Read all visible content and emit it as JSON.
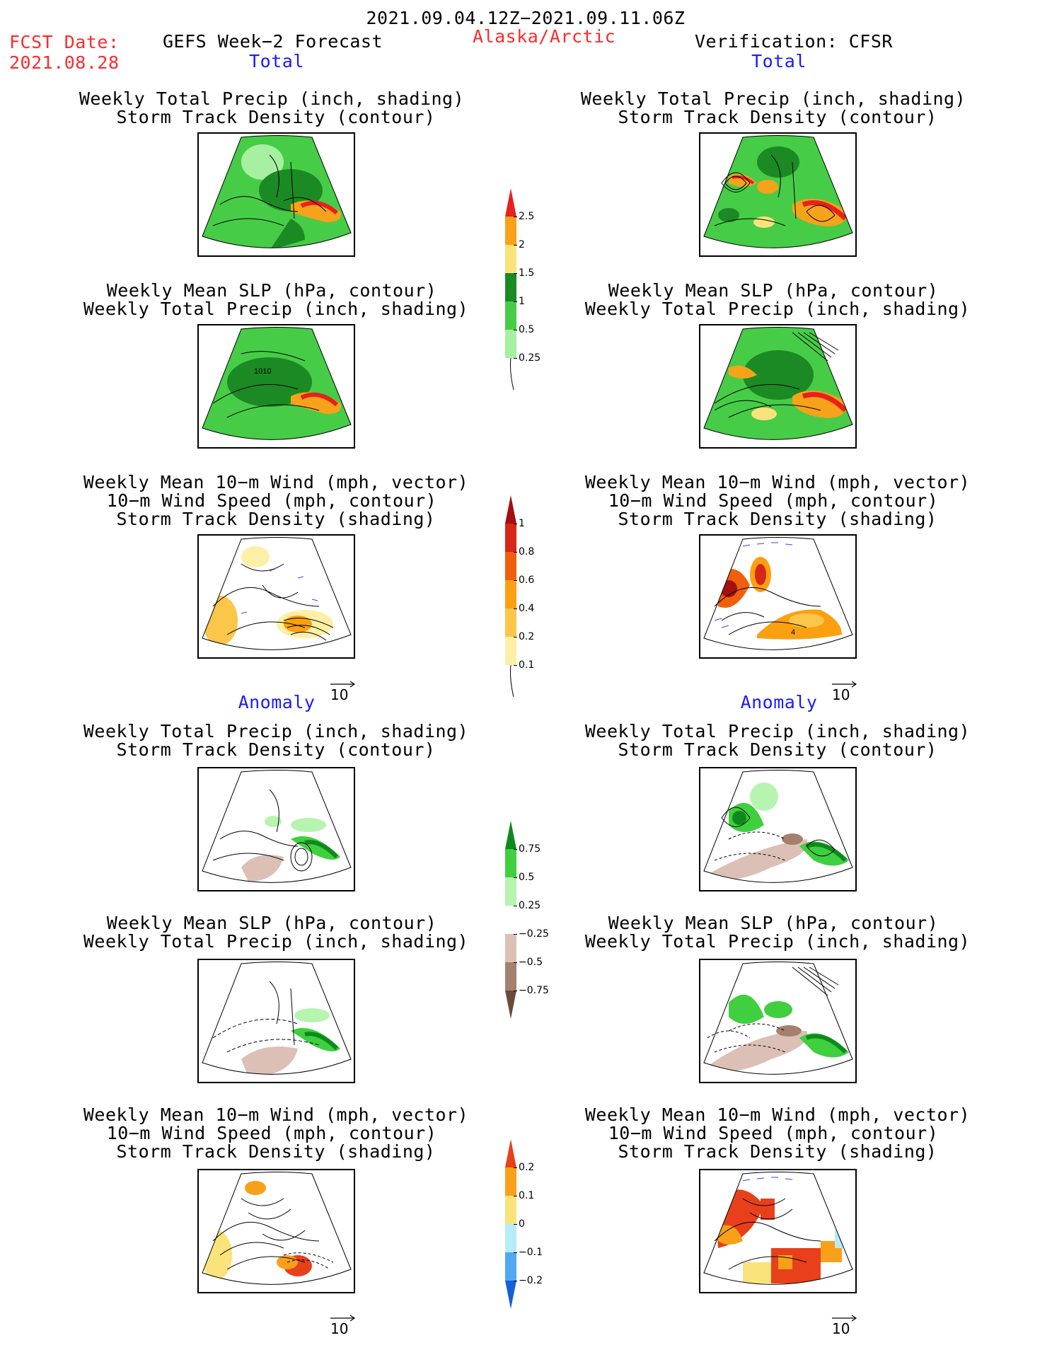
{
  "header": {
    "period": "2021.09.04.12Z−2021.09.11.06Z",
    "fcst_label": "FCST Date:",
    "fcst_date": "2021.08.28",
    "title_left": "GEFS Week−2 Forecast",
    "region": "Alaska/Arctic",
    "title_right": "Verification: CFSR"
  },
  "sections": {
    "total": "Total",
    "anomaly": "Anomaly"
  },
  "panels": {
    "precip_track": [
      "Weekly Total Precip (inch, shading)",
      "Storm Track Density (contour)"
    ],
    "slp_precip": [
      "Weekly Mean SLP (hPa, contour)",
      "Weekly Total Precip (inch, shading)"
    ],
    "wind_track": [
      "Weekly Mean 10−m Wind (mph, vector)",
      "10−m Wind Speed (mph, contour)",
      "Storm Track Density (shading)"
    ]
  },
  "map_labels": {
    "slp_1010": "1010",
    "wind_4": "4"
  },
  "vector_ref": "10",
  "colorbars": {
    "total_precip": {
      "labels": [
        "2.5",
        "2",
        "1.5",
        "1",
        "0.5",
        "0.25"
      ],
      "colors": [
        "#e8201e",
        "#f6a21a",
        "#fbe37c",
        "#1b8a24",
        "#47cc47",
        "#a7f0a1"
      ]
    },
    "total_track": {
      "labels": [
        "1",
        "0.8",
        "0.6",
        "0.4",
        "0.2",
        "0.1"
      ],
      "colors": [
        "#a50f0f",
        "#d7261a",
        "#f0600c",
        "#fba011",
        "#fbc649",
        "#fdf0a6"
      ]
    },
    "anom_precip": {
      "labels": [
        "0.75",
        "0.5",
        "0.25",
        "−0.25",
        "−0.5",
        "−0.75"
      ],
      "colors": [
        "#0e8a1c",
        "#3fcf3f",
        "#b6f4b0",
        "#ffffff",
        "#dcc0b5",
        "#a4806e",
        "#6a4a38"
      ]
    },
    "anom_track": {
      "labels": [
        "0.2",
        "0.1",
        "0",
        "−0.1",
        "−0.2"
      ],
      "colors": [
        "#e8401a",
        "#f9a01a",
        "#fbe37c",
        "#b6ecf8",
        "#52a8f0",
        "#1460d8"
      ]
    }
  }
}
